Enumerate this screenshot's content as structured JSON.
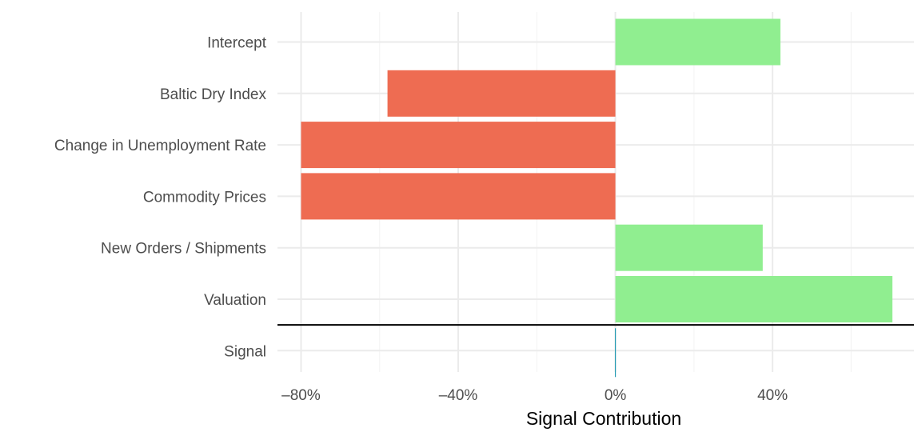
{
  "chart_data": {
    "type": "bar",
    "orientation": "horizontal",
    "title": "",
    "xlabel": "Signal Contribution",
    "ylabel": "",
    "categories": [
      "Intercept",
      "Baltic Dry Index",
      "Change in Unemployment Rate",
      "Commodity Prices",
      "New Orders / Shipments",
      "Valuation",
      "Signal"
    ],
    "values": [
      42,
      -58,
      -80,
      -80,
      37.5,
      70.5,
      0
    ],
    "xlim": [
      -86,
      76
    ],
    "x_ticks": [
      -80,
      -40,
      0,
      40
    ],
    "x_tick_labels": [
      "–80%",
      "–40%",
      "0%",
      "40%"
    ],
    "grid": true,
    "legend": "none",
    "colors": {
      "positive": "#90ee90",
      "negative": "#ee6c52",
      "signal": "#2a9db5",
      "separator": "#000000",
      "grid_major": "#ebebeb",
      "grid_minor": "#f5f5f5",
      "text": "#4d4d4d"
    }
  }
}
